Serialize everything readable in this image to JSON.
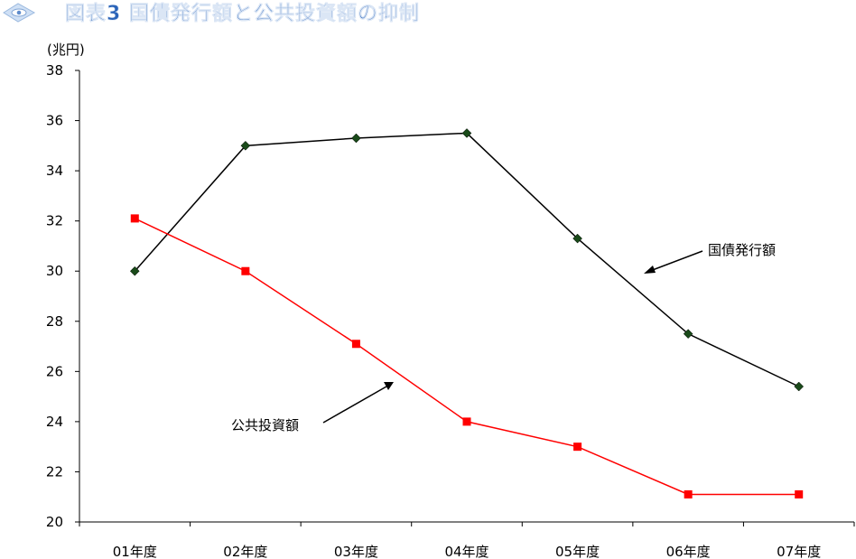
{
  "header": {
    "title": "図表3 国債発行額と公共投資額の抑制",
    "logo_icon": "diamond-eye-icon"
  },
  "chart_data": {
    "type": "line",
    "title": "図表3 国債発行額と公共投資額の抑制",
    "unit_label": "(兆円)",
    "xlabel": "",
    "ylabel": "",
    "categories": [
      "01年度",
      "02年度",
      "03年度",
      "04年度",
      "05年度",
      "06年度",
      "07年度"
    ],
    "ylim": [
      20,
      38
    ],
    "yticks": [
      20,
      22,
      24,
      26,
      28,
      30,
      32,
      34,
      36,
      38
    ],
    "grid": false,
    "legend": "none",
    "series": [
      {
        "name": "国債発行額",
        "values": [
          30.0,
          35.0,
          35.3,
          35.5,
          31.3,
          27.5,
          25.4
        ],
        "color": "#000000",
        "marker": "diamond",
        "marker_color": "#1a4a1a"
      },
      {
        "name": "公共投資額",
        "values": [
          32.1,
          30.0,
          27.1,
          24.0,
          23.0,
          21.1,
          21.1
        ],
        "color": "#ff0000",
        "marker": "square",
        "marker_color": "#ff0000"
      }
    ],
    "annotations": [
      {
        "text": "国債発行額",
        "series": "国債発行額"
      },
      {
        "text": "公共投資額",
        "series": "公共投資額"
      }
    ]
  }
}
